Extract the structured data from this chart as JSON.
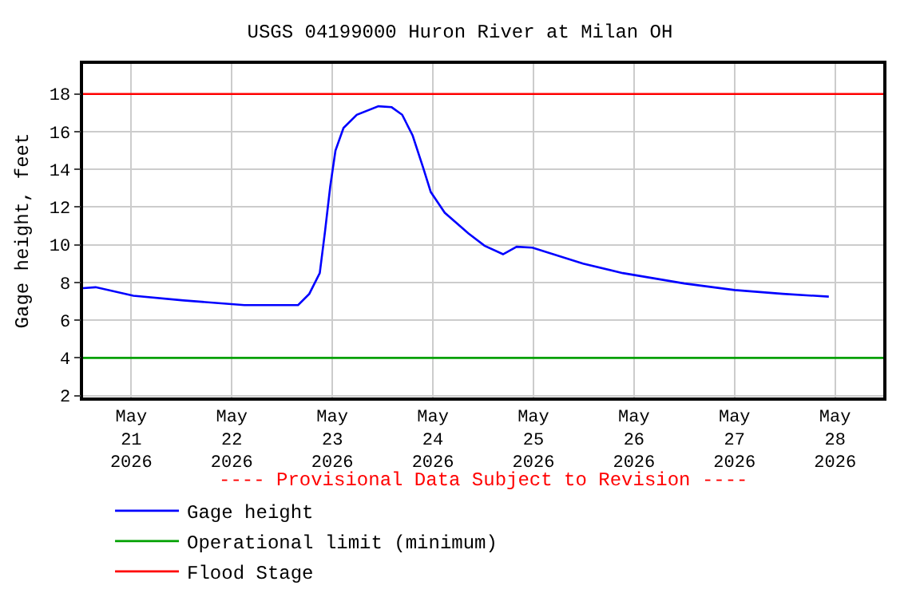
{
  "chart_data": {
    "type": "line",
    "title": "USGS 04199000 Huron River at Milan OH",
    "ylabel": "Gage height, feet",
    "annotations": [
      "---- Provisional Data Subject to Revision ----"
    ],
    "x": [
      "2026-05-20T12:30",
      "2026-05-20T15:30",
      "2026-05-21T00:30",
      "2026-05-21T12:30",
      "2026-05-22T03:00",
      "2026-05-22T15:50",
      "2026-05-22T18:30",
      "2026-05-22T21:00",
      "2026-05-22T22:15",
      "2026-05-22T23:30",
      "2026-05-23T00:45",
      "2026-05-23T02:40",
      "2026-05-23T05:50",
      "2026-05-23T11:00",
      "2026-05-23T14:10",
      "2026-05-23T16:40",
      "2026-05-23T19:10",
      "2026-05-23T21:40",
      "2026-05-23T23:30",
      "2026-05-24T02:50",
      "2026-05-24T08:30",
      "2026-05-24T12:20",
      "2026-05-24T16:45",
      "2026-05-24T20:00",
      "2026-05-24T23:45",
      "2026-05-25T11:50",
      "2026-05-25T21:20",
      "2026-05-26T12:00",
      "2026-05-27T00:00",
      "2026-05-27T11:30",
      "2026-05-27T22:30"
    ],
    "series": [
      {
        "name": "Gage height",
        "color": "#0000ff",
        "values": [
          7.7,
          7.75,
          7.3,
          7.05,
          6.8,
          6.8,
          7.4,
          8.5,
          10.7,
          13.1,
          15.0,
          16.2,
          16.9,
          17.35,
          17.3,
          16.9,
          15.8,
          14.1,
          12.8,
          11.7,
          10.6,
          9.95,
          9.5,
          9.9,
          9.85,
          9.0,
          8.5,
          7.95,
          7.6,
          7.4,
          7.25
        ]
      }
    ],
    "ref_lines": [
      {
        "axis": "y",
        "value": 4,
        "label": "Operational limit (minimum)",
        "color": "#00a000"
      },
      {
        "axis": "y",
        "value": 18,
        "label": "Flood Stage",
        "color": "#ff0000"
      }
    ],
    "xlim": [
      "2026-05-20T12:30",
      "2026-05-28T11:30"
    ],
    "xticks": [
      {
        "value": "2026-05-21",
        "label": "May\n21\n2026"
      },
      {
        "value": "2026-05-22",
        "label": "May\n22\n2026"
      },
      {
        "value": "2026-05-23",
        "label": "May\n23\n2026"
      },
      {
        "value": "2026-05-24",
        "label": "May\n24\n2026"
      },
      {
        "value": "2026-05-25",
        "label": "May\n25\n2026"
      },
      {
        "value": "2026-05-26",
        "label": "May\n26\n2026"
      },
      {
        "value": "2026-05-27",
        "label": "May\n27\n2026"
      },
      {
        "value": "2026-05-28",
        "label": "May\n28\n2026"
      }
    ],
    "ylim": [
      1.9,
      19.6
    ],
    "yticks": [
      2,
      4,
      6,
      8,
      10,
      12,
      14,
      16,
      18
    ],
    "grid": true,
    "legend": "bottom",
    "marker": "none",
    "line_style": "solid"
  }
}
